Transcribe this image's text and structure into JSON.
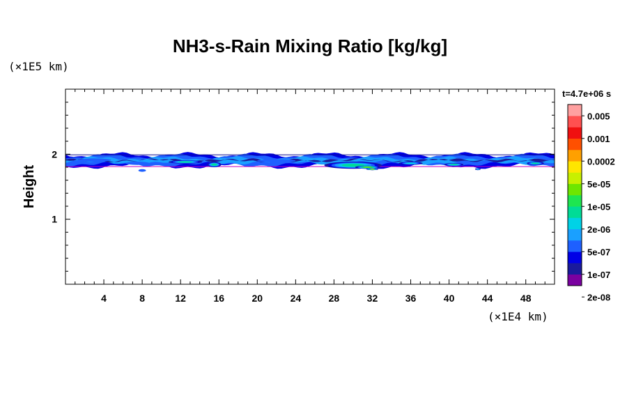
{
  "chart_data": {
    "type": "heatmap",
    "title": "NH3-s-Rain Mixing Ratio [kg/kg]",
    "xlabel": "",
    "ylabel": "Height",
    "x_unit": "(×1E4 km)",
    "y_unit": "(×1E5 km)",
    "time_label": "t=4.7e+06 s",
    "xlim": [
      0,
      51
    ],
    "ylim": [
      0,
      3
    ],
    "x_ticks": [
      4,
      8,
      12,
      16,
      20,
      24,
      28,
      32,
      36,
      40,
      44,
      48
    ],
    "y_ticks": [
      1,
      2
    ],
    "layer": {
      "bottom_height": 1.82,
      "top_height": 1.99
    },
    "features": [
      {
        "x": 3.0,
        "y": 1.91,
        "level": 0,
        "w": 3.5,
        "h": 0.05
      },
      {
        "x": 7.5,
        "y": 1.86,
        "level": 0,
        "w": 2.5,
        "h": 0.05
      },
      {
        "x": 8.0,
        "y": 1.75,
        "level": 0,
        "w": 0.8,
        "h": 0.04
      },
      {
        "x": 12.5,
        "y": 1.88,
        "level": 6,
        "w": 3.5,
        "h": 0.05
      },
      {
        "x": 15.5,
        "y": 1.84,
        "level": 6,
        "w": 1.5,
        "h": 0.08
      },
      {
        "x": 22.0,
        "y": 1.9,
        "level": 0,
        "w": 4.0,
        "h": 0.05
      },
      {
        "x": 30.0,
        "y": 1.83,
        "level": 6,
        "w": 6.0,
        "h": 0.11
      },
      {
        "x": 31.5,
        "y": 1.8,
        "level": 8,
        "w": 2.6,
        "h": 0.05
      },
      {
        "x": 32.0,
        "y": 1.77,
        "level": 9,
        "w": 1.3,
        "h": 0.03
      },
      {
        "x": 36.0,
        "y": 1.86,
        "level": 5,
        "w": 2.5,
        "h": 0.05
      },
      {
        "x": 40.5,
        "y": 1.84,
        "level": 6,
        "w": 2.0,
        "h": 0.05
      },
      {
        "x": 43.0,
        "y": 1.77,
        "level": 5,
        "w": 0.6,
        "h": 0.03
      },
      {
        "x": 49.0,
        "y": 1.86,
        "level": 6,
        "w": 1.8,
        "h": 0.05
      }
    ],
    "colorbar": {
      "labels": [
        "0.005",
        "0.001",
        "0.0002",
        "5e-05",
        "1e-05",
        "2e-06",
        "5e-07",
        "1e-07",
        "2e-08"
      ],
      "colors": [
        "#7a00a0",
        "#1a1a9c",
        "#0000e6",
        "#1e60ff",
        "#1aa0ff",
        "#00d2e6",
        "#00dc96",
        "#1ee650",
        "#6ee600",
        "#c8f000",
        "#ffe600",
        "#ffa000",
        "#ff5000",
        "#f01010",
        "#ff5050",
        "#ffa0a0"
      ]
    }
  }
}
